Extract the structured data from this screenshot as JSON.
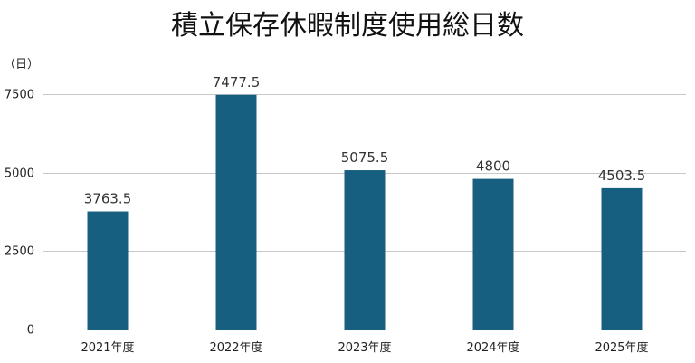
{
  "chart_data": {
    "type": "bar",
    "title": "積立保存休暇制度使用総日数",
    "unit_label": "（日）",
    "categories": [
      "2021年度",
      "2022年度",
      "2023年度",
      "2024年度",
      "2025年度"
    ],
    "values": [
      3763.5,
      7477.5,
      5075.5,
      4800,
      4503.5
    ],
    "data_labels": [
      "3763.5",
      "7477.5",
      "5075.5",
      "4800",
      "4503.5"
    ],
    "ylim": [
      0,
      7500
    ],
    "yticks": [
      0,
      2500,
      5000,
      7500
    ],
    "ytick_labels": [
      "0",
      "2500",
      "5000",
      "7500"
    ],
    "grid": true,
    "legend": "none",
    "bar_color": "#175f80"
  }
}
